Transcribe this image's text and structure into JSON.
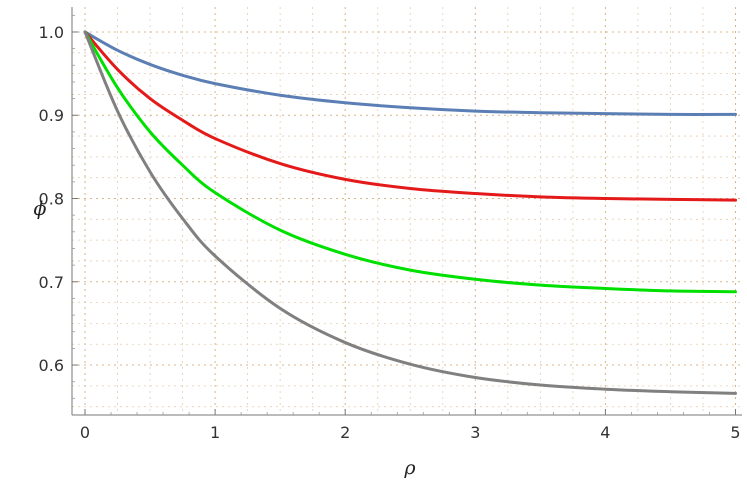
{
  "chart_data": {
    "type": "line",
    "title": "",
    "xlabel": "ρ",
    "ylabel": "ϕ",
    "xlim": [
      -0.1,
      5.05
    ],
    "ylim": [
      0.54,
      1.03
    ],
    "xticks": [
      0,
      1,
      2,
      3,
      4,
      5
    ],
    "yticks": [
      0.6,
      0.7,
      0.8,
      0.9,
      1.0
    ],
    "ytick_labels": [
      "0.6",
      "0.7",
      "0.8",
      "0.9",
      "1.0"
    ],
    "grid": true,
    "grid_style": "dotted",
    "legend": "none",
    "series": [
      {
        "color": "#5b7fb5",
        "x": [
          0,
          0.25,
          0.5,
          0.75,
          1,
          1.5,
          2,
          2.5,
          3,
          3.5,
          4,
          4.5,
          5
        ],
        "y": [
          1.0,
          0.978,
          0.961,
          0.948,
          0.938,
          0.924,
          0.915,
          0.909,
          0.905,
          0.903,
          0.902,
          0.901,
          0.901
        ]
      },
      {
        "color": "#e41a1a",
        "x": [
          0,
          0.25,
          0.5,
          0.75,
          1,
          1.5,
          2,
          2.5,
          3,
          3.5,
          4,
          4.5,
          5
        ],
        "y": [
          1.0,
          0.955,
          0.92,
          0.894,
          0.872,
          0.842,
          0.823,
          0.812,
          0.806,
          0.802,
          0.8,
          0.799,
          0.798
        ]
      },
      {
        "color": "#00e000",
        "x": [
          0,
          0.25,
          0.5,
          0.75,
          1,
          1.5,
          2,
          2.5,
          3,
          3.5,
          4,
          4.5,
          5
        ],
        "y": [
          1.0,
          0.933,
          0.88,
          0.84,
          0.807,
          0.762,
          0.733,
          0.714,
          0.703,
          0.696,
          0.692,
          0.689,
          0.688
        ]
      },
      {
        "color": "#808080",
        "x": [
          0,
          0.25,
          0.5,
          0.75,
          1,
          1.5,
          2,
          2.5,
          3,
          3.5,
          4,
          4.5,
          5
        ],
        "y": [
          1.0,
          0.905,
          0.832,
          0.776,
          0.731,
          0.668,
          0.627,
          0.601,
          0.585,
          0.576,
          0.571,
          0.568,
          0.566
        ]
      }
    ]
  }
}
